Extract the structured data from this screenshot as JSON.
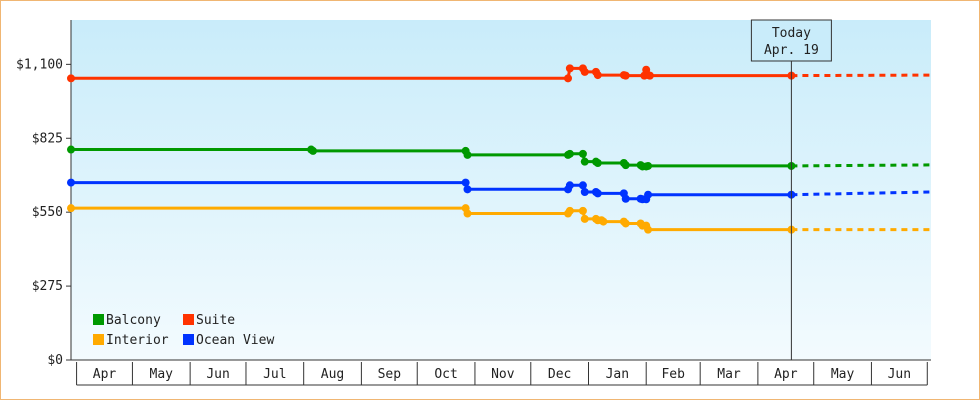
{
  "chart_data": {
    "type": "line",
    "title": "",
    "xlabel": "",
    "ylabel": "",
    "ylim": [
      0,
      1265
    ],
    "y_ticks": [
      0,
      275,
      550,
      825,
      1100
    ],
    "y_tick_labels": [
      "$0",
      "$275",
      "$550",
      "$825",
      "$1,100"
    ],
    "x_range": [
      "2023-03-29",
      "2024-07-03"
    ],
    "month_labels": [
      {
        "label": "Apr",
        "start": "2023-04-01"
      },
      {
        "label": "May",
        "start": "2023-05-01"
      },
      {
        "label": "Jun",
        "start": "2023-06-01"
      },
      {
        "label": "Jul",
        "start": "2023-07-01"
      },
      {
        "label": "Aug",
        "start": "2023-08-01"
      },
      {
        "label": "Sep",
        "start": "2023-09-01"
      },
      {
        "label": "Oct",
        "start": "2023-10-01"
      },
      {
        "label": "Nov",
        "start": "2023-11-01"
      },
      {
        "label": "Dec",
        "start": "2023-12-01"
      },
      {
        "label": "Jan",
        "start": "2024-01-01"
      },
      {
        "label": "Feb",
        "start": "2024-02-01"
      },
      {
        "label": "Mar",
        "start": "2024-03-01"
      },
      {
        "label": "Apr",
        "start": "2024-04-01"
      },
      {
        "label": "May",
        "start": "2024-05-01"
      },
      {
        "label": "Jun",
        "start": "2024-06-01"
      },
      {
        "label": "",
        "start": "2024-07-01"
      }
    ],
    "today": {
      "label_line1": "Today",
      "label_line2": "Apr. 19",
      "date": "2024-04-19"
    },
    "legend_position": "bottom-left",
    "grid": false,
    "series": [
      {
        "name": "Suite",
        "color": "#ff3300",
        "x": [
          "2023-03-29",
          "2023-12-21",
          "2023-12-22",
          "2023-12-29",
          "2023-12-30",
          "2024-01-05",
          "2024-01-06",
          "2024-01-20",
          "2024-01-21",
          "2024-01-31",
          "2024-02-01",
          "2024-02-02",
          "2024-02-03",
          "2024-04-19"
        ],
        "y": [
          1048,
          1048,
          1085,
          1085,
          1072,
          1072,
          1060,
          1060,
          1058,
          1058,
          1080,
          1060,
          1058,
          1058
        ],
        "projection": {
          "x": [
            "2024-04-19",
            "2024-07-03"
          ],
          "y": [
            1058,
            1060
          ]
        }
      },
      {
        "name": "Balcony",
        "color": "#009900",
        "x": [
          "2023-03-29",
          "2023-08-05",
          "2023-08-06",
          "2023-10-27",
          "2023-10-28",
          "2023-12-21",
          "2023-12-22",
          "2023-12-29",
          "2023-12-30",
          "2024-01-05",
          "2024-01-06",
          "2024-01-20",
          "2024-01-21",
          "2024-01-29",
          "2024-01-30",
          "2024-02-01",
          "2024-02-02",
          "2024-04-19"
        ],
        "y": [
          783,
          783,
          778,
          778,
          763,
          763,
          767,
          767,
          738,
          738,
          733,
          733,
          725,
          725,
          720,
          720,
          722,
          722
        ],
        "projection": {
          "x": [
            "2024-04-19",
            "2024-07-03"
          ],
          "y": [
            722,
            726
          ]
        }
      },
      {
        "name": "Ocean View",
        "color": "#0033ff",
        "x": [
          "2023-03-29",
          "2023-10-27",
          "2023-10-28",
          "2023-12-21",
          "2023-12-22",
          "2023-12-29",
          "2023-12-30",
          "2024-01-05",
          "2024-01-06",
          "2024-01-20",
          "2024-01-21",
          "2024-01-29",
          "2024-01-30",
          "2024-02-01",
          "2024-02-02",
          "2024-04-19"
        ],
        "y": [
          660,
          660,
          635,
          635,
          650,
          650,
          625,
          625,
          620,
          620,
          600,
          600,
          598,
          598,
          615,
          615
        ],
        "projection": {
          "x": [
            "2024-04-19",
            "2024-07-03"
          ],
          "y": [
            615,
            625
          ]
        }
      },
      {
        "name": "Interior",
        "color": "#ffaa00",
        "x": [
          "2023-03-29",
          "2023-10-27",
          "2023-10-28",
          "2023-12-21",
          "2023-12-22",
          "2023-12-29",
          "2023-12-30",
          "2024-01-05",
          "2024-01-06",
          "2024-01-08",
          "2024-01-09",
          "2024-01-20",
          "2024-01-21",
          "2024-01-29",
          "2024-01-30",
          "2024-02-01",
          "2024-02-02",
          "2024-04-19"
        ],
        "y": [
          565,
          565,
          545,
          545,
          555,
          555,
          525,
          525,
          520,
          520,
          515,
          515,
          508,
          508,
          500,
          500,
          485,
          485
        ],
        "projection": {
          "x": [
            "2024-04-19",
            "2024-07-03"
          ],
          "y": [
            485,
            485
          ]
        }
      }
    ],
    "legend": [
      {
        "name": "Balcony",
        "color": "#009900"
      },
      {
        "name": "Suite",
        "color": "#ff3300"
      },
      {
        "name": "Interior",
        "color": "#ffaa00"
      },
      {
        "name": "Ocean View",
        "color": "#0033ff"
      }
    ]
  }
}
